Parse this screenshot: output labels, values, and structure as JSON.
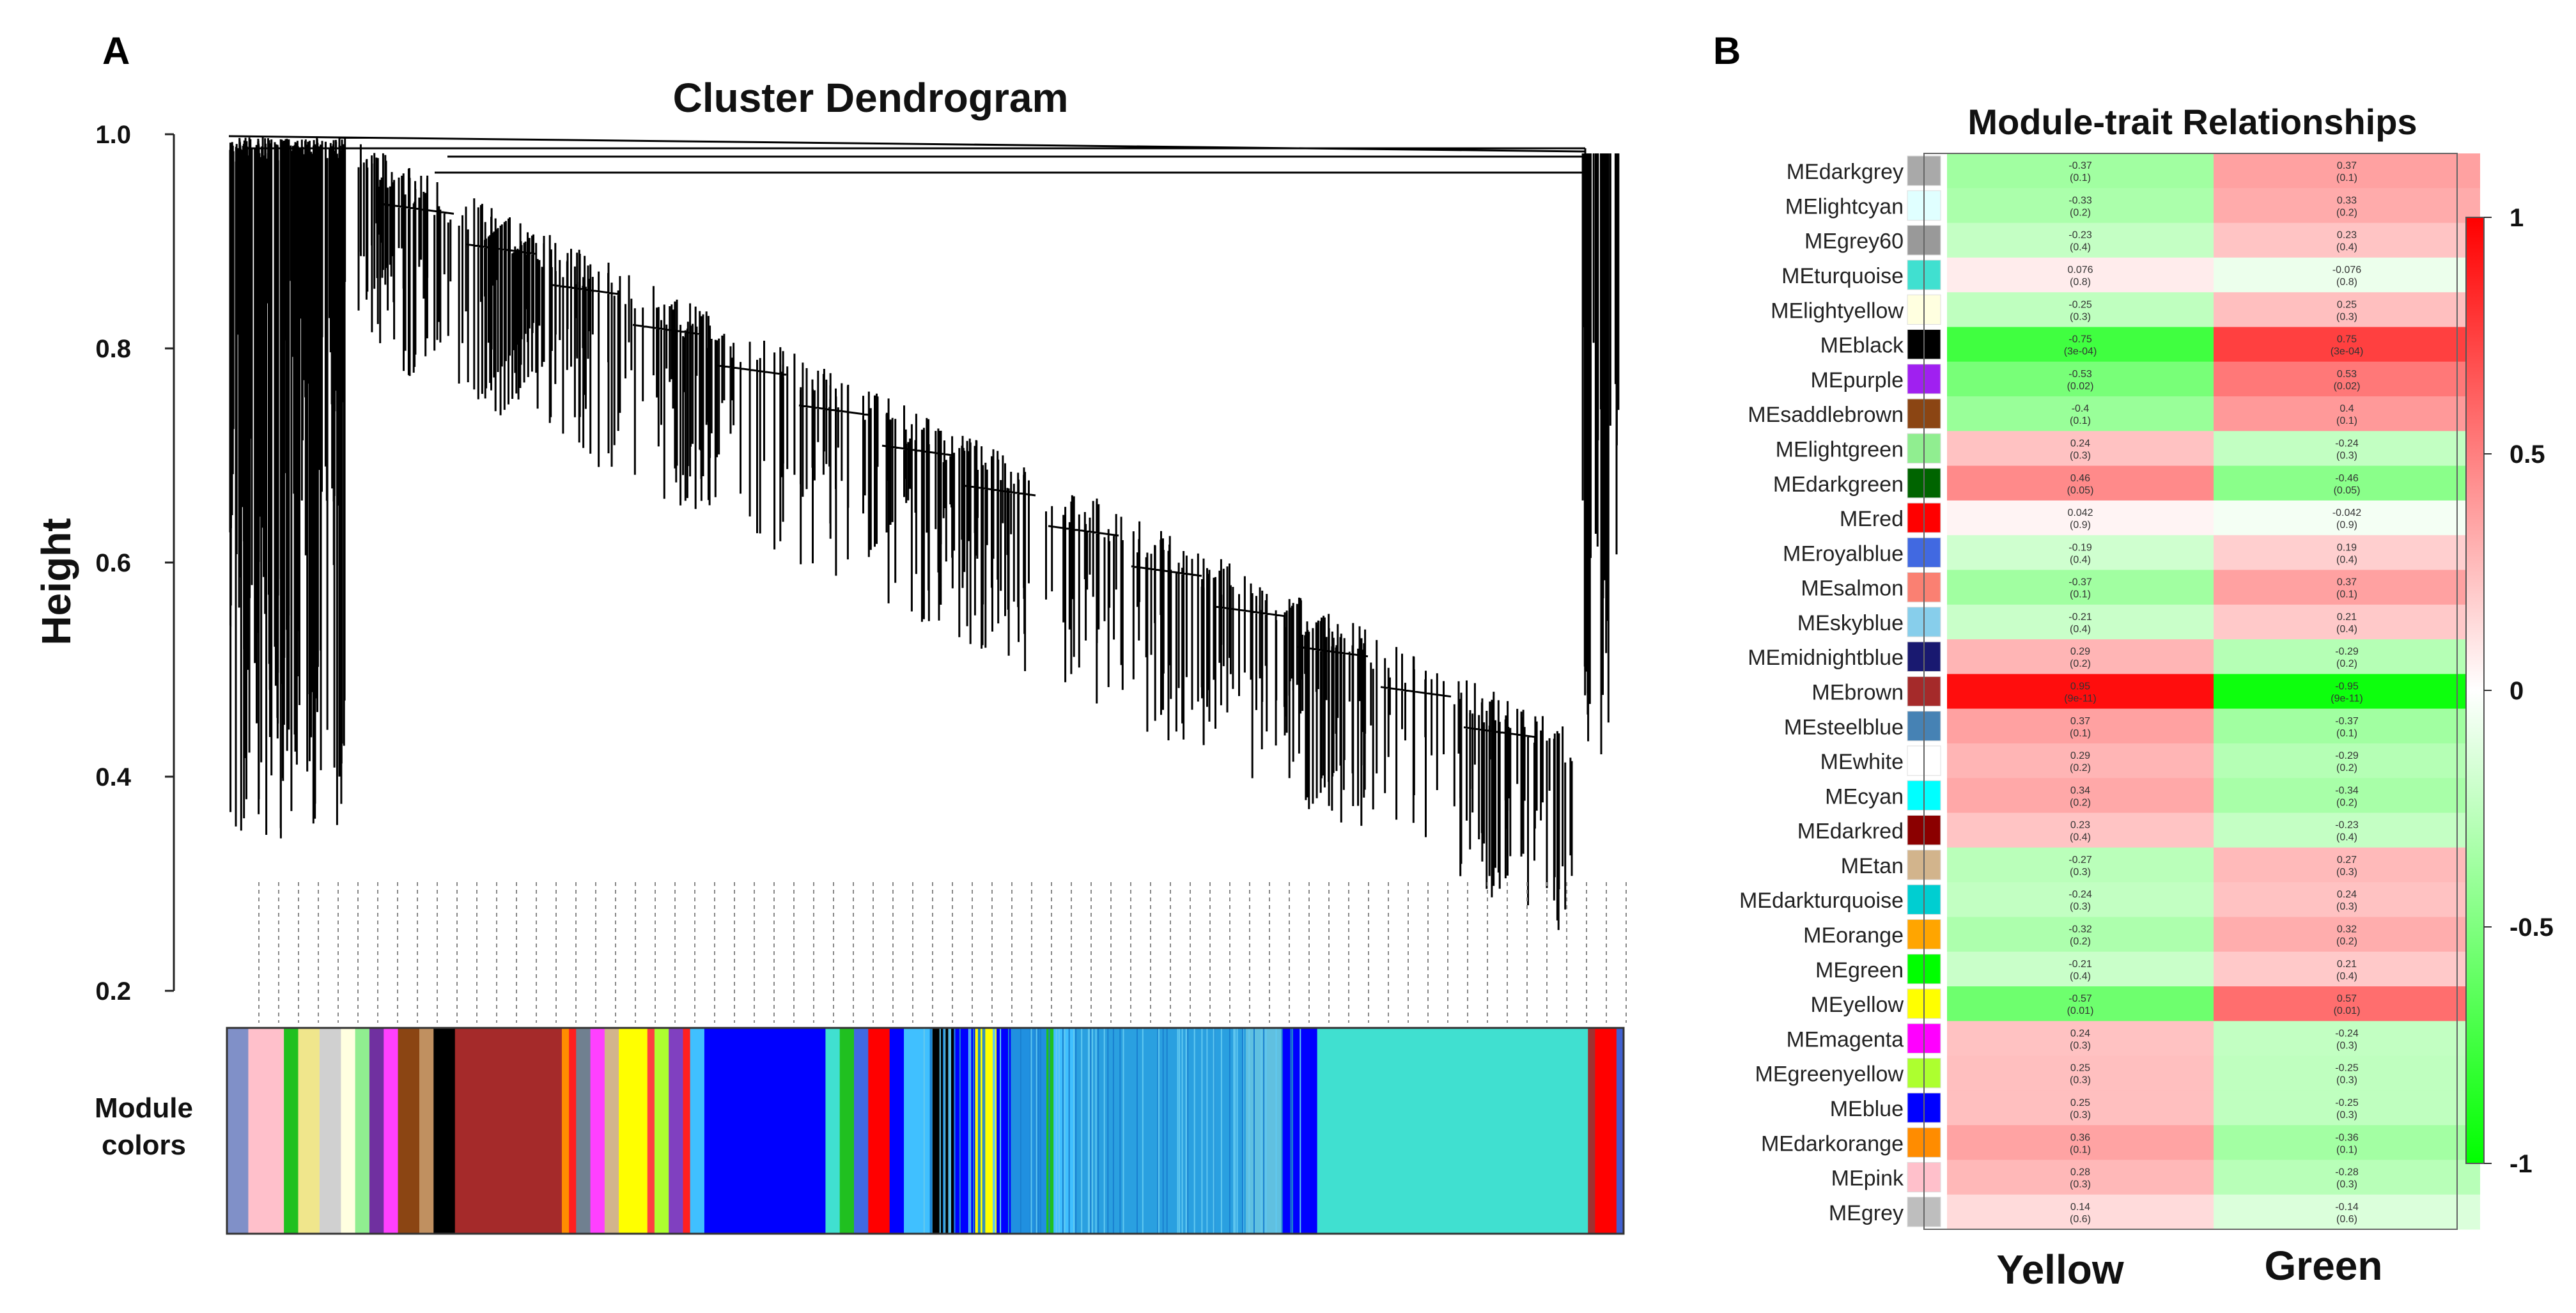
{
  "chart_data": [
    {
      "type": "dendrogram",
      "panel": "A",
      "title": "Cluster Dendrogram",
      "ylabel": "Height",
      "ylim": [
        0.2,
        1.0
      ],
      "yticks": [
        "1.0",
        "0.8",
        "0.6",
        "0.4",
        "0.2"
      ],
      "colorbar_label": [
        "Module",
        "colors"
      ],
      "module_color_blocks": [
        {
          "color": "#8090c8",
          "width": 3
        },
        {
          "color": "#ffc0cb",
          "width": 5
        },
        {
          "color": "#20c020",
          "width": 2
        },
        {
          "color": "#f0e68c",
          "width": 3
        },
        {
          "color": "#d0d0d0",
          "width": 3
        },
        {
          "color": "#ffffe0",
          "width": 2
        },
        {
          "color": "#90ee90",
          "width": 2
        },
        {
          "color": "#7030a0",
          "width": 2
        },
        {
          "color": "#ff40ff",
          "width": 2
        },
        {
          "color": "#8b4513",
          "width": 3
        },
        {
          "color": "#c09060",
          "width": 2
        },
        {
          "color": "#000000",
          "width": 3
        },
        {
          "color": "#a52a2a",
          "width": 15
        },
        {
          "color": "#ff8c00",
          "width": 1
        },
        {
          "color": "#ff2020",
          "width": 1
        },
        {
          "color": "#708090",
          "width": 2
        },
        {
          "color": "#ff40ff",
          "width": 2
        },
        {
          "color": "#d2b48c",
          "width": 2
        },
        {
          "color": "#ffff00",
          "width": 4
        },
        {
          "color": "#ff4040",
          "width": 1
        },
        {
          "color": "#adff2f",
          "width": 2
        },
        {
          "color": "#8040c0",
          "width": 2
        },
        {
          "color": "#ff2020",
          "width": 1
        },
        {
          "color": "#40c0ff",
          "width": 2
        },
        {
          "color": "#0000ff",
          "width": 17
        },
        {
          "color": "#40e0d0",
          "width": 2
        },
        {
          "color": "#20c020",
          "width": 2
        },
        {
          "color": "#4169e1",
          "width": 2
        },
        {
          "color": "#ff0000",
          "width": 3
        },
        {
          "color": "#0000ff",
          "width": 2
        },
        {
          "color": "#40c0ff",
          "width": 4
        },
        {
          "color": "#000000",
          "width": 3
        },
        {
          "color": "#0000ff",
          "width": 3
        },
        {
          "color": "#ffff00",
          "width": 3
        },
        {
          "color": "#0000ff",
          "width": 2
        },
        {
          "color": "#2090e0",
          "width": 5
        },
        {
          "color": "#20c020",
          "width": 1
        },
        {
          "color": "#40c0ff",
          "width": 3
        },
        {
          "color": "#2aa0e0",
          "width": 24
        },
        {
          "color": "#60c0e0",
          "width": 5
        },
        {
          "color": "#0000ff",
          "width": 5
        },
        {
          "color": "#40e0d0",
          "width": 38
        },
        {
          "color": "#a03030",
          "width": 1
        },
        {
          "color": "#ff0000",
          "width": 3
        },
        {
          "color": "#4060d0",
          "width": 1
        }
      ]
    },
    {
      "type": "heatmap",
      "panel": "B",
      "title": "Module-trait Relationships",
      "xlabel_categories": [
        "Yellow",
        "Green"
      ],
      "colorbar_ticks": [
        "1",
        "0.5",
        "0",
        "-0.5",
        "-1"
      ],
      "colorscale": {
        "low": "#00ff00",
        "mid": "#ffffff",
        "high": "#ff0000"
      },
      "rows": [
        {
          "name": "MEdarkgrey",
          "color": "#a9a9a9",
          "values": [
            -0.37,
            0.37
          ],
          "corr": [
            "-0.37",
            "0.37"
          ],
          "pval": [
            "(0.1)",
            "(0.1)"
          ]
        },
        {
          "name": "MElightcyan",
          "color": "#e0ffff",
          "values": [
            -0.33,
            0.33
          ],
          "corr": [
            "-0.33",
            "0.33"
          ],
          "pval": [
            "(0.2)",
            "(0.2)"
          ]
        },
        {
          "name": "MEgrey60",
          "color": "#999999",
          "values": [
            -0.23,
            0.23
          ],
          "corr": [
            "-0.23",
            "0.23"
          ],
          "pval": [
            "(0.4)",
            "(0.4)"
          ]
        },
        {
          "name": "MEturquoise",
          "color": "#40e0d0",
          "values": [
            0.076,
            -0.076
          ],
          "corr": [
            "0.076",
            "-0.076"
          ],
          "pval": [
            "(0.8)",
            "(0.8)"
          ]
        },
        {
          "name": "MElightyellow",
          "color": "#ffffe0",
          "values": [
            -0.25,
            0.25
          ],
          "corr": [
            "-0.25",
            "0.25"
          ],
          "pval": [
            "(0.3)",
            "(0.3)"
          ]
        },
        {
          "name": "MEblack",
          "color": "#000000",
          "values": [
            -0.75,
            0.75
          ],
          "corr": [
            "-0.75",
            "0.75"
          ],
          "pval": [
            "(3e-04)",
            "(3e-04)"
          ]
        },
        {
          "name": "MEpurple",
          "color": "#a020f0",
          "values": [
            -0.53,
            0.53
          ],
          "corr": [
            "-0.53",
            "0.53"
          ],
          "pval": [
            "(0.02)",
            "(0.02)"
          ]
        },
        {
          "name": "MEsaddlebrown",
          "color": "#8b4513",
          "values": [
            -0.4,
            0.4
          ],
          "corr": [
            "-0.4",
            "0.4"
          ],
          "pval": [
            "(0.1)",
            "(0.1)"
          ]
        },
        {
          "name": "MElightgreen",
          "color": "#90ee90",
          "values": [
            0.24,
            -0.24
          ],
          "corr": [
            "0.24",
            "-0.24"
          ],
          "pval": [
            "(0.3)",
            "(0.3)"
          ]
        },
        {
          "name": "MEdarkgreen",
          "color": "#006400",
          "values": [
            0.46,
            -0.46
          ],
          "corr": [
            "0.46",
            "-0.46"
          ],
          "pval": [
            "(0.05)",
            "(0.05)"
          ]
        },
        {
          "name": "MEred",
          "color": "#ff0000",
          "values": [
            0.042,
            -0.042
          ],
          "corr": [
            "0.042",
            "-0.042"
          ],
          "pval": [
            "(0.9)",
            "(0.9)"
          ]
        },
        {
          "name": "MEroyalblue",
          "color": "#4169e1",
          "values": [
            -0.19,
            0.19
          ],
          "corr": [
            "-0.19",
            "0.19"
          ],
          "pval": [
            "(0.4)",
            "(0.4)"
          ]
        },
        {
          "name": "MEsalmon",
          "color": "#fa8072",
          "values": [
            -0.37,
            0.37
          ],
          "corr": [
            "-0.37",
            "0.37"
          ],
          "pval": [
            "(0.1)",
            "(0.1)"
          ]
        },
        {
          "name": "MEskyblue",
          "color": "#87ceeb",
          "values": [
            -0.21,
            0.21
          ],
          "corr": [
            "-0.21",
            "0.21"
          ],
          "pval": [
            "(0.4)",
            "(0.4)"
          ]
        },
        {
          "name": "MEmidnightblue",
          "color": "#191970",
          "values": [
            0.29,
            -0.29
          ],
          "corr": [
            "0.29",
            "-0.29"
          ],
          "pval": [
            "(0.2)",
            "(0.2)"
          ]
        },
        {
          "name": "MEbrown",
          "color": "#a52a2a",
          "values": [
            0.95,
            -0.95
          ],
          "corr": [
            "0.95",
            "-0.95"
          ],
          "pval": [
            "(9e-11)",
            "(9e-11)"
          ]
        },
        {
          "name": "MEsteelblue",
          "color": "#4682b4",
          "values": [
            0.37,
            -0.37
          ],
          "corr": [
            "0.37",
            "-0.37"
          ],
          "pval": [
            "(0.1)",
            "(0.1)"
          ]
        },
        {
          "name": "MEwhite",
          "color": "#ffffff",
          "values": [
            0.29,
            -0.29
          ],
          "corr": [
            "0.29",
            "-0.29"
          ],
          "pval": [
            "(0.2)",
            "(0.2)"
          ]
        },
        {
          "name": "MEcyan",
          "color": "#00ffff",
          "values": [
            0.34,
            -0.34
          ],
          "corr": [
            "0.34",
            "-0.34"
          ],
          "pval": [
            "(0.2)",
            "(0.2)"
          ]
        },
        {
          "name": "MEdarkred",
          "color": "#8b0000",
          "values": [
            0.23,
            -0.23
          ],
          "corr": [
            "0.23",
            "-0.23"
          ],
          "pval": [
            "(0.4)",
            "(0.4)"
          ]
        },
        {
          "name": "MEtan",
          "color": "#d2b48c",
          "values": [
            -0.27,
            0.27
          ],
          "corr": [
            "-0.27",
            "0.27"
          ],
          "pval": [
            "(0.3)",
            "(0.3)"
          ]
        },
        {
          "name": "MEdarkturquoise",
          "color": "#00ced1",
          "values": [
            -0.24,
            0.24
          ],
          "corr": [
            "-0.24",
            "0.24"
          ],
          "pval": [
            "(0.3)",
            "(0.3)"
          ]
        },
        {
          "name": "MEorange",
          "color": "#ffa500",
          "values": [
            -0.32,
            0.32
          ],
          "corr": [
            "-0.32",
            "0.32"
          ],
          "pval": [
            "(0.2)",
            "(0.2)"
          ]
        },
        {
          "name": "MEgreen",
          "color": "#00ff00",
          "values": [
            -0.21,
            0.21
          ],
          "corr": [
            "-0.21",
            "0.21"
          ],
          "pval": [
            "(0.4)",
            "(0.4)"
          ]
        },
        {
          "name": "MEyellow",
          "color": "#ffff00",
          "values": [
            -0.57,
            0.57
          ],
          "corr": [
            "-0.57",
            "0.57"
          ],
          "pval": [
            "(0.01)",
            "(0.01)"
          ]
        },
        {
          "name": "MEmagenta",
          "color": "#ff00ff",
          "values": [
            0.24,
            -0.24
          ],
          "corr": [
            "0.24",
            "-0.24"
          ],
          "pval": [
            "(0.3)",
            "(0.3)"
          ]
        },
        {
          "name": "MEgreenyellow",
          "color": "#adff2f",
          "values": [
            0.25,
            -0.25
          ],
          "corr": [
            "0.25",
            "-0.25"
          ],
          "pval": [
            "(0.3)",
            "(0.3)"
          ]
        },
        {
          "name": "MEblue",
          "color": "#0000ff",
          "values": [
            0.25,
            -0.25
          ],
          "corr": [
            "0.25",
            "-0.25"
          ],
          "pval": [
            "(0.3)",
            "(0.3)"
          ]
        },
        {
          "name": "MEdarkorange",
          "color": "#ff8c00",
          "values": [
            0.36,
            -0.36
          ],
          "corr": [
            "0.36",
            "-0.36"
          ],
          "pval": [
            "(0.1)",
            "(0.1)"
          ]
        },
        {
          "name": "MEpink",
          "color": "#ffc0cb",
          "values": [
            0.28,
            -0.28
          ],
          "corr": [
            "0.28",
            "-0.28"
          ],
          "pval": [
            "(0.3)",
            "(0.3)"
          ]
        },
        {
          "name": "MEgrey",
          "color": "#bebebe",
          "values": [
            0.14,
            -0.14
          ],
          "corr": [
            "0.14",
            "-0.14"
          ],
          "pval": [
            "(0.6)",
            "(0.6)"
          ]
        }
      ]
    }
  ],
  "panels": {
    "a_label": "A",
    "b_label": "B"
  }
}
